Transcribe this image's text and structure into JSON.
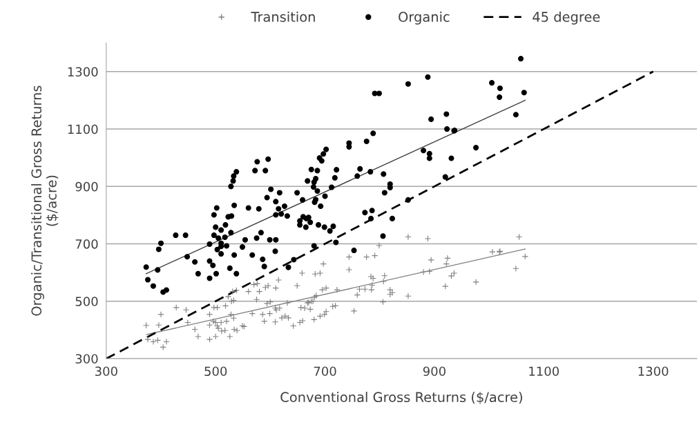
{
  "chart_data": {
    "type": "scatter",
    "xlabel": "Conventional Gross Returns ($/acre)",
    "ylabel": "Organic/Transitional Gross Returns\n($/acre)",
    "xlim": [
      300,
      1380
    ],
    "ylim": [
      300,
      1400
    ],
    "xticks": [
      300,
      500,
      700,
      900,
      1100,
      1300
    ],
    "yticks": [
      300,
      500,
      700,
      900,
      1100,
      1300
    ],
    "grid": "y",
    "legend": "top",
    "series": [
      {
        "name": "Transition",
        "marker": "cross",
        "color": "#808080",
        "x": [
          373,
          376,
          386,
          394,
          400,
          404,
          410,
          396,
          428,
          446,
          449,
          462,
          468,
          489,
          489,
          489,
          496,
          500,
          497,
          503,
          500,
          503,
          505,
          510,
          511,
          517,
          518,
          520,
          526,
          528,
          533,
          534,
          539,
          523,
          529,
          533,
          531,
          538,
          549,
          552,
          560,
          567,
          570,
          576,
          575,
          580,
          586,
          589,
          591,
          596,
          594,
          600,
          599,
          609,
          609,
          610,
          615,
          611,
          617,
          621,
          627,
          633,
          631,
          642,
          649,
          654,
          659,
          658,
          656,
          663,
          668,
          673,
          670,
          675,
          678,
          681,
          684,
          682,
          691,
          697,
          680,
          691,
          699,
          702,
          695,
          702,
          714,
          719,
          722,
          744,
          744,
          753,
          759,
          763,
          773,
          776,
          784,
          788,
          785,
          786,
          791,
          799,
          806,
          807,
          809,
          819,
          819,
          823,
          852,
          852,
          880,
          888,
          891,
          894,
          920,
          922,
          924,
          931,
          936,
          976,
          1006,
          1019,
          1020,
          1049,
          1055,
          1066
        ],
        "values": [
          416,
          367,
          359,
          364,
          454,
          340,
          359,
          417,
          478,
          470,
          426,
          402,
          377,
          454,
          417,
          367,
          430,
          377,
          478,
          478,
          426,
          414,
          406,
          426,
          396,
          398,
          484,
          430,
          377,
          454,
          441,
          402,
          398,
          516,
          500,
          503,
          534,
          538,
          414,
          412,
          534,
          457,
          558,
          561,
          506,
          534,
          454,
          430,
          548,
          554,
          492,
          498,
          457,
          428,
          476,
          546,
          574,
          470,
          476,
          442,
          448,
          442,
          494,
          414,
          554,
          426,
          432,
          598,
          478,
          476,
          494,
          472,
          496,
          500,
          500,
          514,
          520,
          595,
          598,
          630,
          436,
          448,
          454,
          464,
          540,
          546,
          482,
          484,
          540,
          654,
          610,
          466,
          522,
          542,
          542,
          654,
          586,
          580,
          540,
          556,
          659,
          694,
          498,
          569,
          589,
          540,
          524,
          530,
          724,
          518,
          602,
          718,
          604,
          644,
          552,
          630,
          650,
          588,
          598,
          567,
          672,
          672,
          674,
          614,
          724,
          656
        ]
      },
      {
        "name": "Organic",
        "marker": "circle",
        "color": "#000000",
        "x": [
          373,
          376,
          386,
          394,
          396,
          400,
          404,
          410,
          427,
          445,
          448,
          462,
          468,
          489,
          489,
          489,
          495,
          501,
          497,
          500,
          502,
          497,
          505,
          503,
          510,
          510,
          510,
          510,
          517,
          518,
          520,
          523,
          528,
          529,
          528,
          532,
          533,
          538,
          534,
          526,
          534,
          538,
          549,
          554,
          560,
          567,
          572,
          576,
          579,
          575,
          583,
          586,
          589,
          591,
          596,
          594,
          601,
          599,
          610,
          610,
          610,
          609,
          617,
          615,
          620,
          626,
          631,
          633,
          643,
          649,
          659,
          654,
          654,
          660,
          665,
          666,
          670,
          673,
          680,
          668,
          675,
          680,
          679,
          683,
          686,
          686,
          681,
          683,
          688,
          692,
          690,
          694,
          697,
          702,
          700,
          699,
          709,
          715,
          712,
          718,
          721,
          720,
          744,
          744,
          753,
          759,
          764,
          773,
          776,
          783,
          784,
          786,
          788,
          807,
          806,
          809,
          819,
          819,
          823,
          852,
          880,
          891,
          891,
          920,
          923,
          931,
          936,
          976,
          791,
          799,
          852,
          888,
          894,
          922,
          937,
          1005,
          1020,
          1019,
          1049,
          1064,
          1058
        ],
        "values": [
          619,
          575,
          553,
          609,
          681,
          702,
          532,
          539,
          730,
          730,
          655,
          637,
          596,
          699,
          640,
          580,
          625,
          596,
          801,
          758,
          825,
          730,
          720,
          680,
          702,
          691,
          665,
          748,
          723,
          766,
          693,
          794,
          739,
          797,
          900,
          919,
          936,
          951,
          834,
          615,
          661,
          596,
          689,
          714,
          825,
          661,
          955,
          986,
          822,
          720,
          739,
          646,
          621,
          955,
          995,
          861,
          890,
          714,
          847,
          801,
          714,
          674,
          878,
          822,
          804,
          831,
          797,
          618,
          645,
          878,
          853,
          780,
          766,
          794,
          758,
          788,
          792,
          775,
          693,
          919,
          959,
          915,
          898,
          927,
          884,
          955,
          845,
          854,
          766,
          831,
          999,
          989,
          1013,
          1029,
          866,
          758,
          745,
          761,
          897,
          930,
          958,
          705,
          1051,
          1038,
          677,
          936,
          961,
          809,
          1057,
          951,
          788,
          816,
          1085,
          943,
          727,
          878,
          908,
          896,
          788,
          853,
          1025,
          1014,
          998,
          933,
          1100,
          998,
          1094,
          1035,
          1224,
          1224,
          1257,
          1281,
          1134,
          1152,
          1095,
          1261,
          1242,
          1211,
          1150,
          1227,
          1345
        ]
      },
      {
        "type": "line",
        "color": "#404040",
        "x": [
          373,
          1066
        ],
        "values": [
          596,
          1200
        ]
      },
      {
        "type": "line",
        "color": "#808080",
        "x": [
          374,
          1066
        ],
        "values": [
          384,
          682
        ]
      },
      {
        "name": "45 degree",
        "type": "line",
        "line_style": "dashed",
        "color": "#000000",
        "x": [
          300,
          1300
        ],
        "values": [
          300,
          1300
        ]
      }
    ]
  }
}
